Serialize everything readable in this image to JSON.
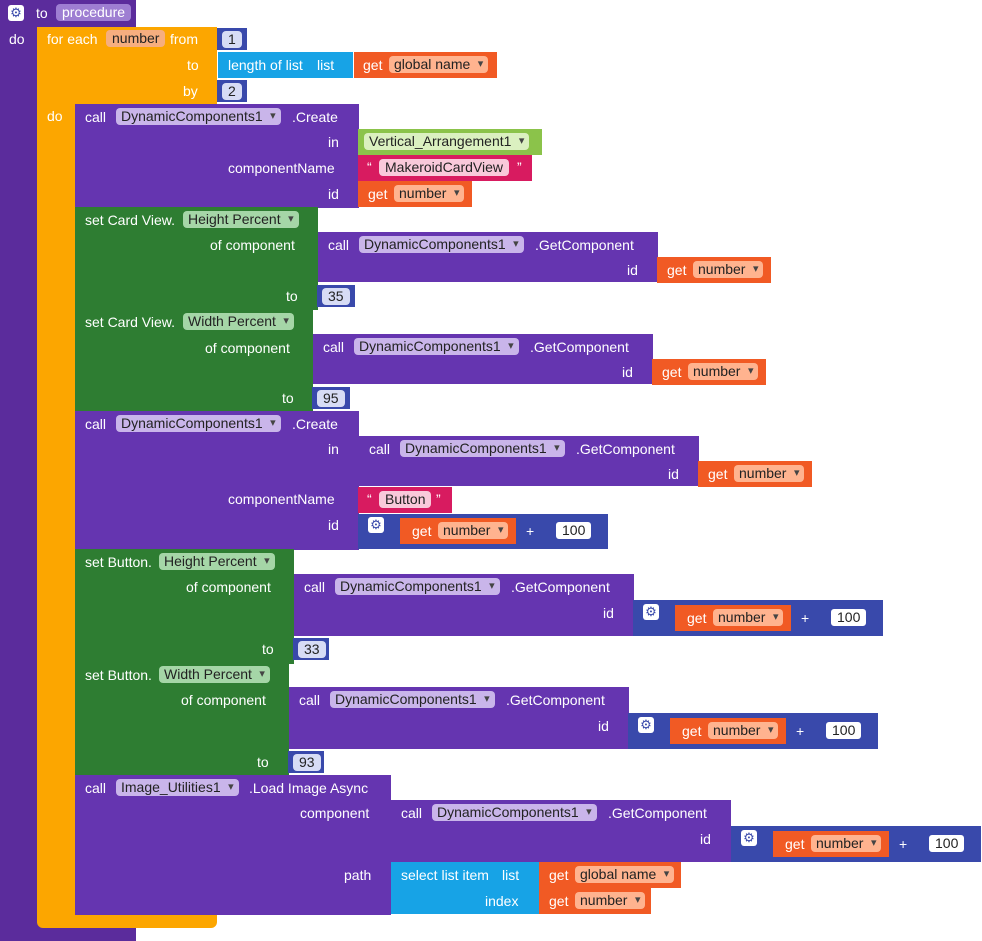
{
  "procedure": {
    "to_label": "to",
    "name": "procedure",
    "do_label": "do"
  },
  "loop": {
    "for_each": "for each",
    "var": "number",
    "from": "from",
    "to": "to",
    "by": "by",
    "do": "do",
    "from_value": "1",
    "by_value": "2",
    "length_of_list": "length of list",
    "list": "list",
    "get": "get",
    "global_name": "global name"
  },
  "create1": {
    "call": "call",
    "component": "DynamicComponents1",
    "method": ".Create",
    "in": "in",
    "arrangement": "Vertical_Arrangement1",
    "componentName": "componentName",
    "type": "MakeroidCardView",
    "id": "id",
    "get": "get",
    "var": "number"
  },
  "set_height": {
    "set": "set Card View.",
    "property": "Height Percent",
    "of_component": "of component",
    "call": "call",
    "component": "DynamicComponents1",
    "method": ".GetComponent",
    "id": "id",
    "get": "get",
    "var": "number",
    "to": "to",
    "value": "35"
  },
  "set_width": {
    "set": "set Card View.",
    "property": "Width Percent",
    "of_component": "of component",
    "call": "call",
    "component": "DynamicComponents1",
    "method": ".GetComponent",
    "id": "id",
    "get": "get",
    "var": "number",
    "to": "to",
    "value": "95"
  },
  "create2": {
    "call": "call",
    "component": "DynamicComponents1",
    "method": ".Create",
    "in": "in",
    "in_call": "call",
    "in_component": "DynamicComponents1",
    "in_method": ".GetComponent",
    "in_id": "id",
    "in_get": "get",
    "in_var": "number",
    "componentName": "componentName",
    "type": "Button",
    "id": "id",
    "get": "get",
    "var": "number",
    "plus": "+",
    "add_value": "100"
  },
  "set_btn_height": {
    "set": "set Button.",
    "property": "Height Percent",
    "of_component": "of component",
    "call": "call",
    "component": "DynamicComponents1",
    "method": ".GetComponent",
    "id": "id",
    "get": "get",
    "var": "number",
    "plus": "+",
    "add_value": "100",
    "to": "to",
    "value": "33"
  },
  "set_btn_width": {
    "set": "set Button.",
    "property": "Width Percent",
    "of_component": "of component",
    "call": "call",
    "component": "DynamicComponents1",
    "method": ".GetComponent",
    "id": "id",
    "get": "get",
    "var": "number",
    "plus": "+",
    "add_value": "100",
    "to": "to",
    "value": "93"
  },
  "load_image": {
    "call": "call",
    "component": "Image_Utilities1",
    "method": ".Load Image Async",
    "component_label": "component",
    "inner_call": "call",
    "inner_component": "DynamicComponents1",
    "inner_method": ".GetComponent",
    "id": "id",
    "get": "get",
    "var": "number",
    "plus": "+",
    "add_value": "100",
    "path": "path",
    "select_list_item": "select list item",
    "list": "list",
    "get_list": "get",
    "global_name": "global name",
    "index": "index",
    "get_index": "get",
    "index_var": "number"
  },
  "icons": {
    "mutator": "gear-icon"
  },
  "colors": {
    "procedure": "#5b2c9c",
    "loop": "#fca600",
    "component": "#6535b0",
    "setter": "#2e7d32",
    "list": "#17a3e6",
    "variable": "#f15a24",
    "text": "#d81b60",
    "math": "#3949ab",
    "any_component": "#8bc34a"
  }
}
